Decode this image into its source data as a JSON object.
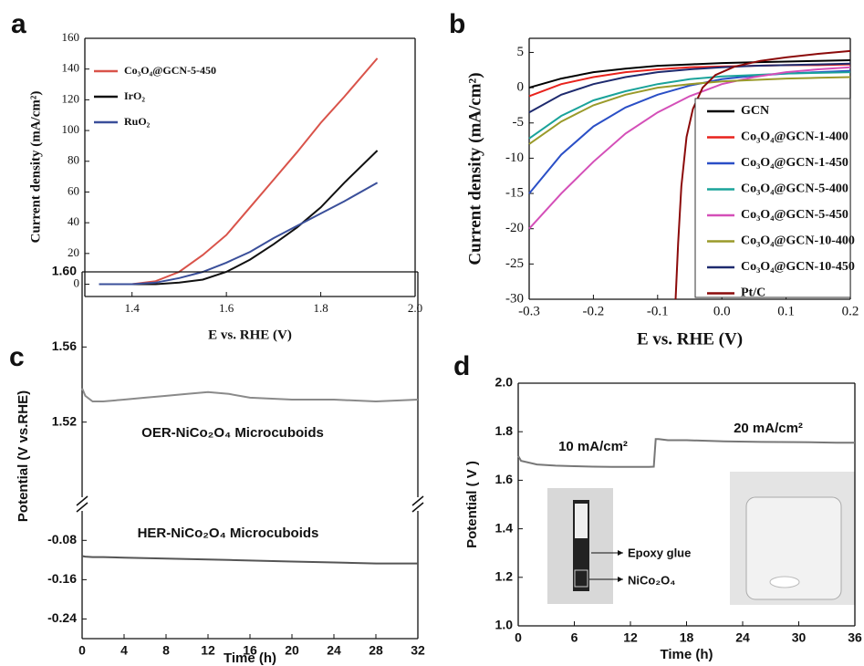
{
  "chart_data": [
    {
      "type": "line",
      "panel_label": "a",
      "xlabel": "E vs. RHE (V)",
      "ylabel": "Current density (mA/cm²)",
      "xlim": [
        1.3,
        2.0
      ],
      "xticks": [
        1.4,
        1.6,
        1.8,
        {
          "value": 2,
          "label": "2.0"
        }
      ],
      "ylim": [
        -8,
        160
      ],
      "yticks": [
        0,
        20,
        40,
        60,
        80,
        100,
        120,
        140,
        160
      ],
      "grid": false,
      "legend": "upper left",
      "x": [
        1.33,
        1.4,
        1.45,
        1.5,
        1.55,
        1.6,
        1.65,
        1.7,
        1.75,
        1.8,
        1.85,
        1.92
      ],
      "series": [
        {
          "name": "Co₃O₄@GCN-5-450",
          "color": "#d9534a",
          "values": [
            0,
            0,
            2,
            8,
            19,
            32,
            50,
            68,
            86,
            105,
            122,
            147
          ]
        },
        {
          "name": "IrO₂",
          "color": "#111111",
          "values": [
            0,
            0,
            0,
            1,
            3,
            8,
            16,
            26,
            37,
            50,
            66,
            87
          ]
        },
        {
          "name": "RuO₂",
          "color": "#3a4f9a",
          "values": [
            0,
            0,
            1,
            4,
            8,
            14,
            21,
            30,
            38,
            46,
            54,
            66
          ]
        }
      ]
    },
    {
      "type": "line",
      "panel_label": "b",
      "xlabel": "E vs. RHE (V)",
      "ylabel": "Current density (mA/cm²)",
      "xlim": [
        -0.3,
        0.2
      ],
      "xticks": [
        -0.3,
        -0.2,
        -0.1,
        {
          "value": 0,
          "label": "0.0"
        },
        0.1,
        0.2
      ],
      "ylim": [
        -30,
        7
      ],
      "yticks": [
        -30,
        -25,
        -20,
        -15,
        -10,
        -5,
        0,
        5
      ],
      "grid": false,
      "legend": "lower right",
      "x": [
        -0.3,
        -0.25,
        -0.2,
        -0.15,
        -0.1,
        -0.05,
        0,
        0.05,
        0.1,
        0.15,
        0.2
      ],
      "series": [
        {
          "name": "GCN",
          "color": "#000000",
          "values": [
            0,
            1.3,
            2.2,
            2.7,
            3.1,
            3.3,
            3.5,
            3.6,
            3.7,
            3.8,
            3.9
          ]
        },
        {
          "name": "Co₃O₄@GCN-1-400",
          "color": "#e8221c",
          "values": [
            -1.2,
            0.5,
            1.5,
            2.2,
            2.6,
            2.9,
            3.0,
            3.1,
            3.2,
            3.2,
            3.3
          ]
        },
        {
          "name": "Co₃O₄@GCN-1-450",
          "color": "#2a4fc6",
          "values": [
            -15,
            -9.5,
            -5.5,
            -2.8,
            -1,
            0.3,
            1.2,
            1.7,
            2,
            2.2,
            2.4
          ]
        },
        {
          "name": "Co₃O₄@GCN-5-400",
          "color": "#1aa39a",
          "values": [
            -7.2,
            -4,
            -1.8,
            -0.5,
            0.5,
            1.2,
            1.6,
            1.8,
            2,
            2.1,
            2.2
          ]
        },
        {
          "name": "Co₃O₄@GCN-5-450",
          "color": "#d44fb8",
          "values": [
            -20,
            -15,
            -10.5,
            -6.5,
            -3.5,
            -1.2,
            0.5,
            1.5,
            2.2,
            2.6,
            2.9
          ]
        },
        {
          "name": "Co₃O₄@GCN-10-400",
          "color": "#9a9a2a",
          "values": [
            -8,
            -4.8,
            -2.5,
            -1,
            0,
            0.5,
            0.9,
            1.1,
            1.3,
            1.4,
            1.5
          ]
        },
        {
          "name": "Co₃O₄@GCN-10-450",
          "color": "#1e2a6e",
          "values": [
            -3.5,
            -1,
            0.5,
            1.5,
            2.2,
            2.6,
            2.9,
            3.1,
            3.2,
            3.3,
            3.4
          ]
        },
        {
          "name": "Pt/C",
          "color": "#8b0a0a",
          "x": [
            -0.072,
            -0.068,
            -0.063,
            -0.055,
            -0.045,
            -0.03,
            -0.01,
            0.02,
            0.06,
            0.1,
            0.15,
            0.2
          ],
          "values": [
            -30,
            -22,
            -14,
            -7,
            -3,
            0,
            1.8,
            3,
            3.8,
            4.3,
            4.8,
            5.2
          ]
        }
      ]
    },
    {
      "type": "line",
      "panel_label": "c",
      "ylabel": "Potential (V vs.RHE)",
      "xlim": [
        0,
        32
      ],
      "ylim": [
        1.48,
        1.6
      ],
      "yticks": [
        {
          "value": 1.6,
          "label": "1.60"
        },
        {
          "value": 1.56,
          "label": "1.56"
        },
        {
          "value": 1.52,
          "label": "1.52"
        }
      ],
      "annotations": [
        "OER-NiCo₂O₄ Microcuboids"
      ],
      "x": [
        0,
        0.3,
        1,
        2,
        4,
        6,
        8,
        10,
        12,
        14,
        16,
        20,
        24,
        28,
        32
      ],
      "series": [
        {
          "color": "#8a8a8a",
          "values": [
            1.538,
            1.534,
            1.531,
            1.531,
            1.532,
            1.533,
            1.534,
            1.535,
            1.536,
            1.535,
            1.533,
            1.532,
            1.532,
            1.531,
            1.532
          ]
        }
      ]
    },
    {
      "type": "line",
      "xlabel": "Time (h)",
      "xlim": [
        0,
        32
      ],
      "xticks": [
        0,
        4,
        8,
        12,
        16,
        20,
        24,
        28,
        32
      ],
      "ylim": [
        -0.28,
        -0.02
      ],
      "yticks": [
        -0.08,
        -0.16,
        -0.24
      ],
      "annotations": [
        "HER-NiCo₂O₄ Microcuboids"
      ],
      "x": [
        0,
        0.3,
        1,
        2,
        4,
        6,
        8,
        10,
        12,
        14,
        16,
        20,
        24,
        28,
        32
      ],
      "series": [
        {
          "color": "#555555",
          "values": [
            -0.112,
            -0.113,
            -0.114,
            -0.114,
            -0.115,
            -0.116,
            -0.117,
            -0.118,
            -0.119,
            -0.12,
            -0.121,
            -0.123,
            -0.125,
            -0.127,
            -0.127
          ]
        }
      ]
    },
    {
      "type": "line",
      "panel_label": "d",
      "xlabel": "Time (h)",
      "ylabel": "Potential ( V )",
      "xlim": [
        0,
        36
      ],
      "xticks": [
        0,
        6,
        12,
        18,
        24,
        30,
        36
      ],
      "ylim": [
        1,
        2
      ],
      "yticks": [
        {
          "value": 1,
          "label": "1.0"
        },
        1.2,
        1.4,
        1.6,
        1.8,
        {
          "value": 2,
          "label": "2.0"
        }
      ],
      "annotations": [
        "10 mA/cm²",
        "20 mA/cm²",
        "Epoxy glue",
        "NiCo₂O₄"
      ],
      "x": [
        0,
        0.3,
        2,
        4,
        6,
        8,
        10,
        12,
        14,
        14.5,
        14.7,
        15,
        16,
        18,
        22,
        26,
        30,
        34,
        36
      ],
      "series": [
        {
          "color": "#777777",
          "values": [
            1.7,
            1.68,
            1.665,
            1.66,
            1.658,
            1.656,
            1.655,
            1.655,
            1.655,
            1.656,
            1.77,
            1.77,
            1.765,
            1.765,
            1.76,
            1.758,
            1.757,
            1.755,
            1.755
          ]
        }
      ]
    }
  ]
}
